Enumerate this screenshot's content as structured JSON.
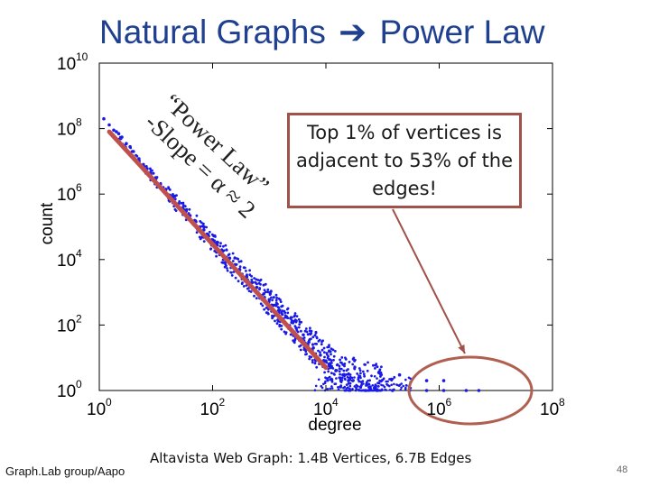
{
  "slide": {
    "title_left": "Natural Graphs",
    "title_arrow": "➔",
    "title_right": "Power Law",
    "callout_text": "Top 1% of vertices is adjacent to 53% of the edges!",
    "annotation_line1": "“Power Law”",
    "annotation_line2": "-Slope = α ≈ 2",
    "caption": "Altavista Web Graph: 1.4B Vertices, 6.7B Edges",
    "credit": "Graph.Lab group/Aapo",
    "page_number": "48"
  },
  "chart_data": {
    "type": "scatter",
    "xlabel": "degree",
    "ylabel": "count",
    "x_scale": "log",
    "y_scale": "log",
    "xlim": [
      1,
      100000000
    ],
    "ylim": [
      1,
      10000000000
    ],
    "x_ticks": [
      {
        "value": 1,
        "base": "10",
        "exp": "0"
      },
      {
        "value": 100,
        "base": "10",
        "exp": "2"
      },
      {
        "value": 10000,
        "base": "10",
        "exp": "4"
      },
      {
        "value": 1000000,
        "base": "10",
        "exp": "6"
      },
      {
        "value": 100000000,
        "base": "10",
        "exp": "8"
      }
    ],
    "y_ticks": [
      {
        "value": 1,
        "base": "10",
        "exp": "0"
      },
      {
        "value": 100,
        "base": "10",
        "exp": "2"
      },
      {
        "value": 10000,
        "base": "10",
        "exp": "4"
      },
      {
        "value": 1000000,
        "base": "10",
        "exp": "6"
      },
      {
        "value": 100000000,
        "base": "10",
        "exp": "8"
      },
      {
        "value": 10000000000,
        "base": "10",
        "exp": "10"
      }
    ],
    "grid": false,
    "point_color": "#1a1ae6",
    "fit_line": {
      "x": [
        1.5,
        10000
      ],
      "y": [
        80000000,
        5
      ],
      "color": "#c0504d"
    },
    "points": [
      [
        1.2,
        200000000
      ],
      [
        1.5,
        130000000
      ],
      [
        1.8,
        90000000
      ],
      [
        2,
        80000000
      ],
      [
        2.2,
        70000000
      ],
      [
        2.5,
        55000000
      ],
      [
        3,
        35000000
      ],
      [
        3.5,
        28000000
      ],
      [
        4,
        20000000
      ],
      [
        5,
        12000000
      ],
      [
        6,
        8000000
      ],
      [
        7,
        6000000
      ],
      [
        8,
        4500000
      ],
      [
        10,
        3000000
      ],
      [
        12,
        2000000
      ],
      [
        15,
        1400000
      ],
      [
        18,
        900000
      ],
      [
        20,
        800000
      ],
      [
        25,
        500000
      ],
      [
        30,
        350000
      ],
      [
        40,
        220000
      ],
      [
        50,
        150000
      ],
      [
        60,
        100000
      ],
      [
        70,
        80000
      ],
      [
        80,
        60000
      ],
      [
        100,
        40000
      ],
      [
        120,
        28000
      ],
      [
        150,
        18000
      ],
      [
        200,
        11000
      ],
      [
        250,
        7000
      ],
      [
        300,
        5000
      ],
      [
        400,
        3000
      ],
      [
        500,
        2000
      ],
      [
        600,
        1400
      ],
      [
        800,
        900
      ],
      [
        1000,
        600
      ],
      [
        1200,
        400
      ],
      [
        1500,
        280
      ],
      [
        2000,
        180
      ],
      [
        2500,
        120
      ],
      [
        3000,
        80
      ],
      [
        4000,
        50
      ],
      [
        5000,
        30
      ],
      [
        6000,
        20
      ],
      [
        8000,
        12
      ],
      [
        10000,
        8
      ],
      [
        12000,
        5
      ],
      [
        15000,
        4
      ],
      [
        20000,
        3
      ],
      [
        25000,
        2
      ],
      [
        30000,
        2
      ],
      [
        50000,
        1
      ],
      [
        80000,
        1
      ],
      [
        150000,
        1
      ],
      [
        300000,
        1
      ],
      [
        600000,
        1
      ],
      [
        1200000,
        1
      ],
      [
        3000000,
        1
      ],
      [
        5000000,
        1
      ],
      [
        1200000,
        2
      ],
      [
        600000,
        2
      ],
      [
        200000,
        3
      ]
    ],
    "cloud": [
      {
        "x": 2,
        "y": 60000000
      },
      {
        "x": 5,
        "y": 10000000
      },
      {
        "x": 15,
        "y": 1200000
      },
      {
        "x": 50,
        "y": 120000
      },
      {
        "x": 150,
        "y": 15000
      },
      {
        "x": 500,
        "y": 1800
      },
      {
        "x": 1500,
        "y": 250
      },
      {
        "x": 5000,
        "y": 30
      },
      {
        "x": 20000,
        "y": 3
      },
      {
        "x": 100000,
        "y": 1.5
      }
    ]
  }
}
